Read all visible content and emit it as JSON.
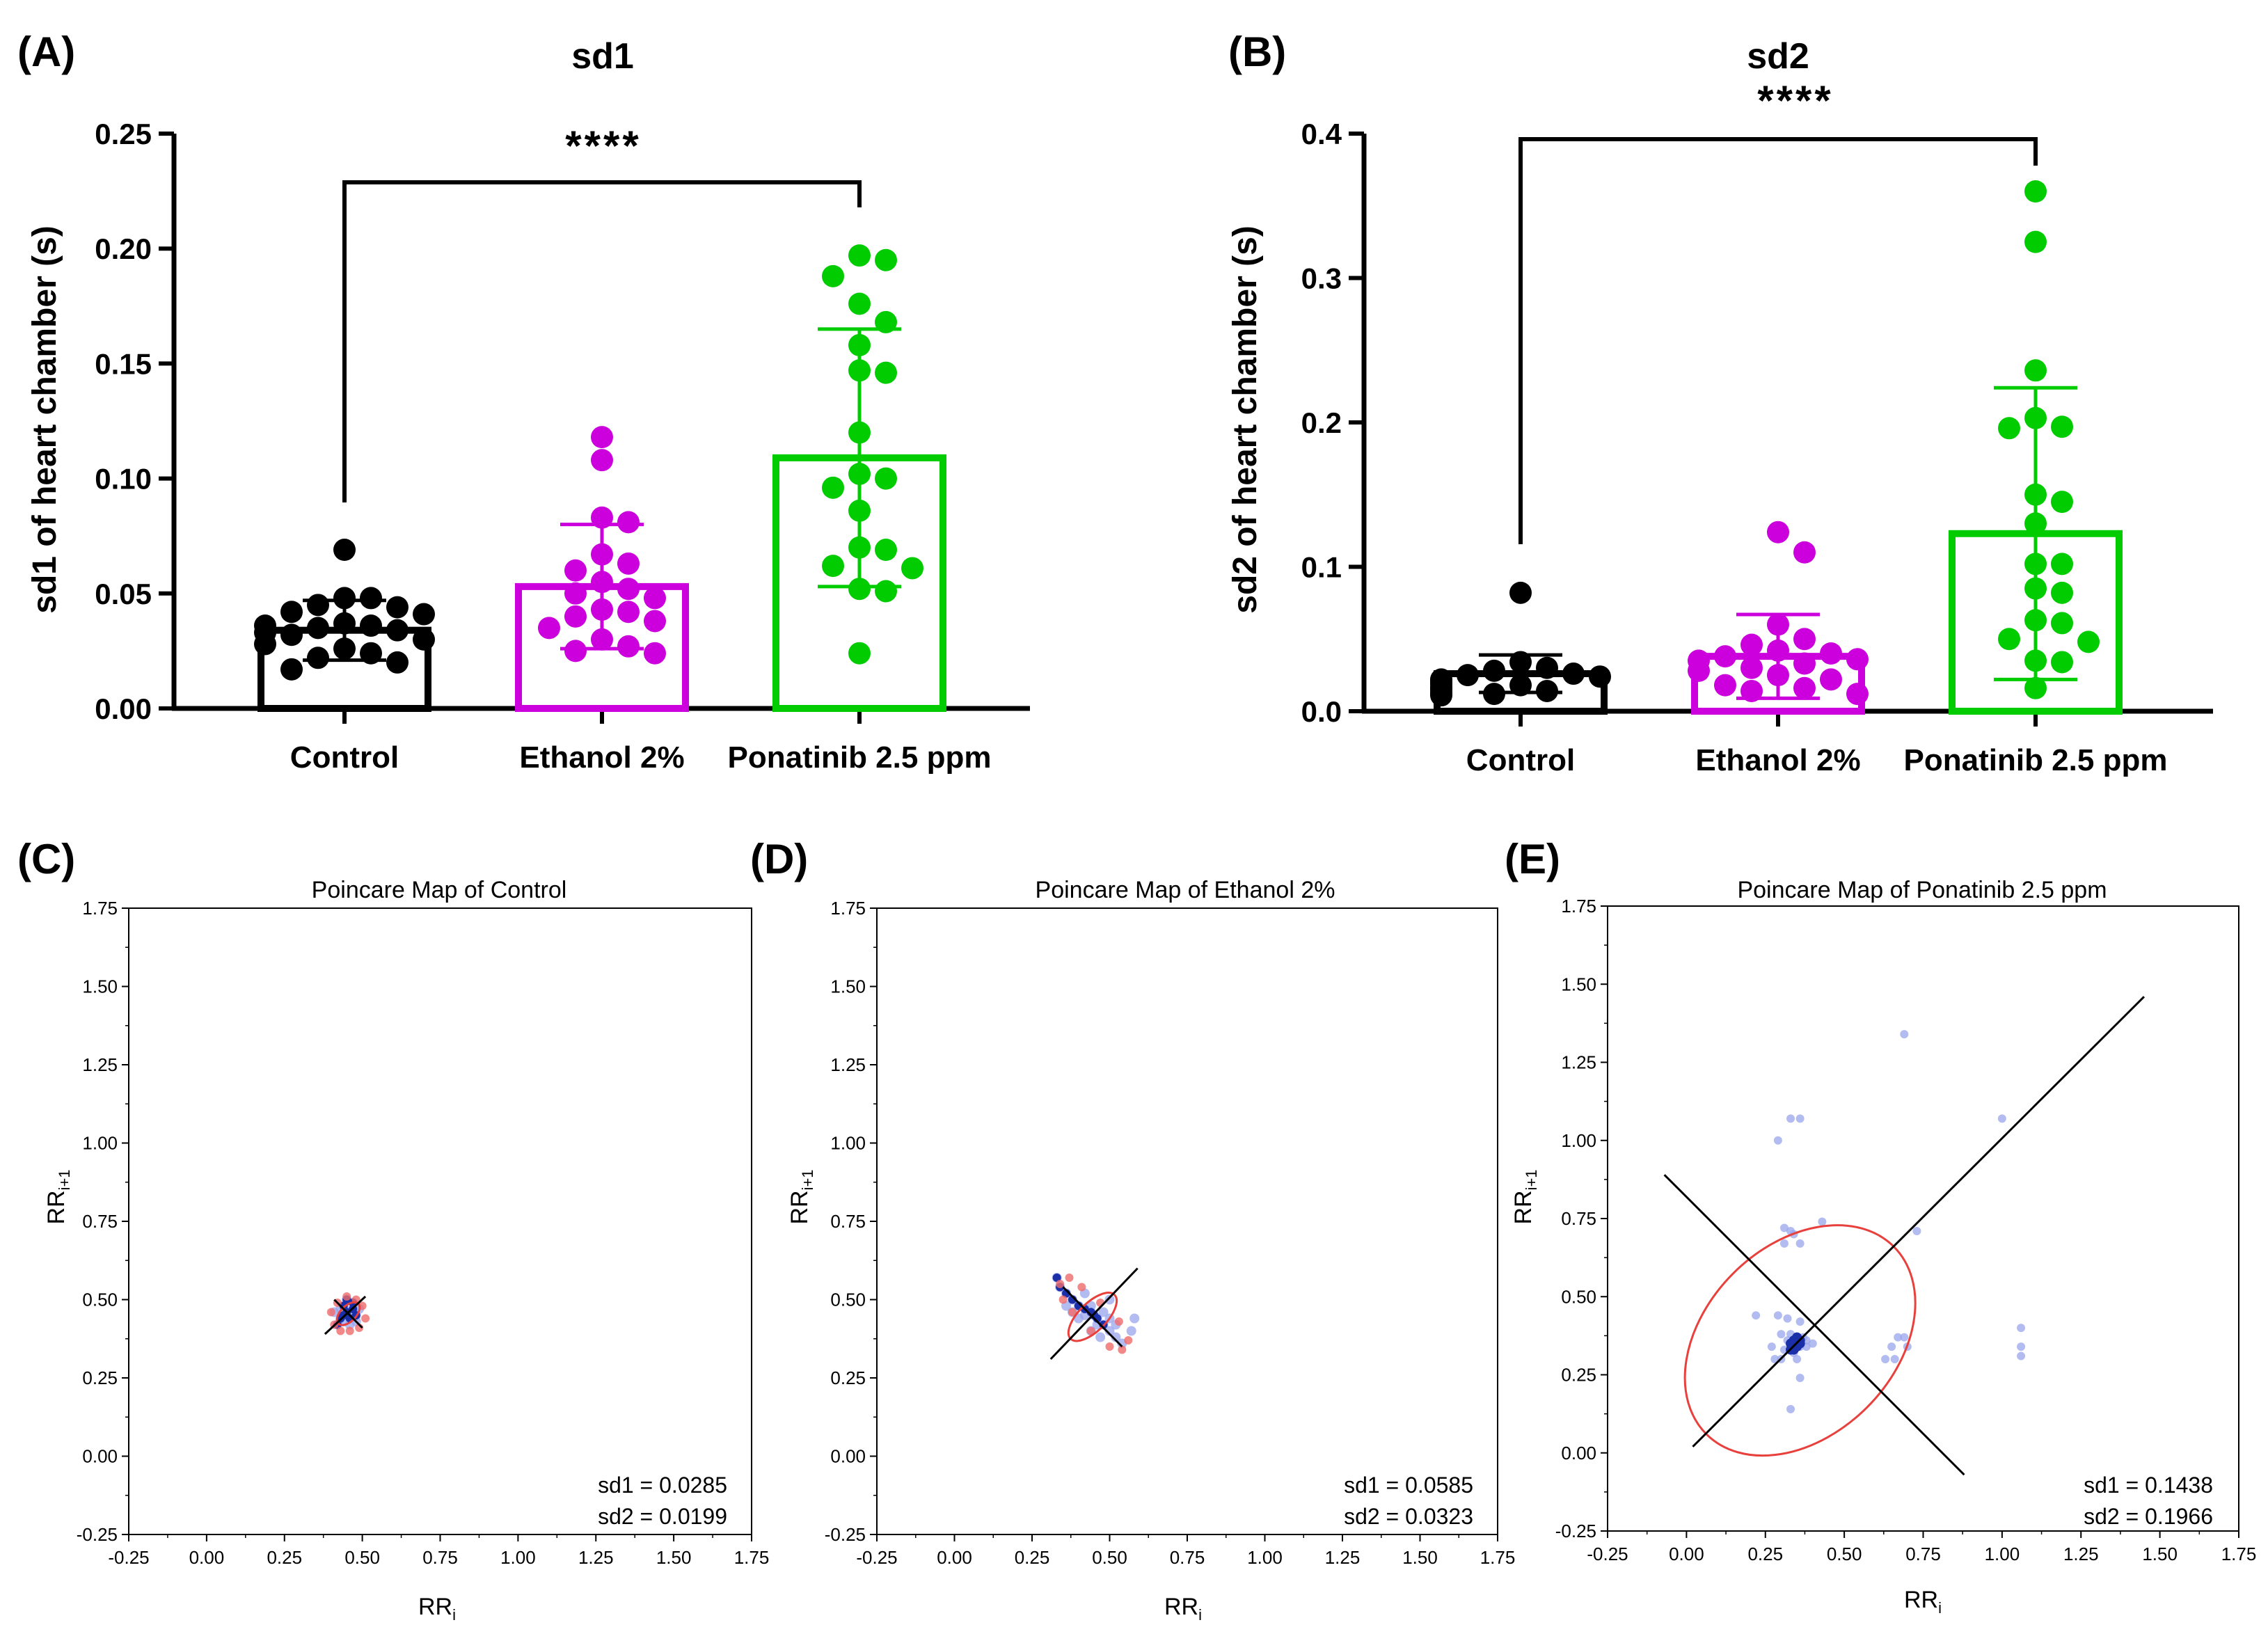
{
  "figure": {
    "panel_labels": [
      "(A)",
      "(B)",
      "(C)",
      "(D)",
      "(E)"
    ]
  },
  "chart_data": [
    {
      "type": "bar",
      "panel": "(A)",
      "title": "sd1",
      "ylabel": "sd1 of heart chamber (s)",
      "xlabel": "",
      "ylim": [
        0,
        0.25
      ],
      "yticks": [
        "0.00",
        "0.05",
        "0.10",
        "0.15",
        "0.20",
        "0.25"
      ],
      "ytick_values": [
        0,
        0.05,
        0.1,
        0.15,
        0.2,
        0.25
      ],
      "categories": [
        "Control",
        "Ethanol 2%",
        "Ponatinib 2.5 ppm"
      ],
      "colors": [
        "#000000",
        "#cc00dd",
        "#00cc00"
      ],
      "means": [
        0.034,
        0.053,
        0.109
      ],
      "sd": [
        0.013,
        0.027,
        0.056
      ],
      "points": [
        [
          0.069,
          0.048,
          0.048,
          0.045,
          0.044,
          0.042,
          0.041,
          0.037,
          0.036,
          0.036,
          0.035,
          0.034,
          0.033,
          0.032,
          0.03,
          0.028,
          0.026,
          0.024,
          0.022,
          0.02,
          0.017
        ],
        [
          0.118,
          0.108,
          0.083,
          0.081,
          0.067,
          0.063,
          0.06,
          0.055,
          0.052,
          0.05,
          0.048,
          0.043,
          0.042,
          0.04,
          0.038,
          0.035,
          0.03,
          0.027,
          0.025,
          0.024
        ],
        [
          0.197,
          0.195,
          0.188,
          0.176,
          0.168,
          0.158,
          0.147,
          0.146,
          0.12,
          0.102,
          0.1,
          0.096,
          0.086,
          0.07,
          0.069,
          0.062,
          0.061,
          0.052,
          0.051,
          0.024
        ]
      ],
      "comparison": {
        "from": "Control",
        "to": "Ponatinib 2.5 ppm",
        "label": "****"
      }
    },
    {
      "type": "bar",
      "panel": "(B)",
      "title": "sd2",
      "ylabel": "sd2 of heart chamber (s)",
      "xlabel": "",
      "ylim": [
        0,
        0.4
      ],
      "yticks": [
        "0.0",
        "0.1",
        "0.2",
        "0.3",
        "0.4"
      ],
      "ytick_values": [
        0,
        0.1,
        0.2,
        0.3,
        0.4
      ],
      "categories": [
        "Control",
        "Ethanol 2%",
        "Ponatinib 2.5 ppm"
      ],
      "colors": [
        "#000000",
        "#cc00dd",
        "#00cc00"
      ],
      "means": [
        0.026,
        0.038,
        0.123
      ],
      "sd": [
        0.013,
        0.029,
        0.101
      ],
      "points": [
        [
          0.082,
          0.034,
          0.03,
          0.028,
          0.026,
          0.025,
          0.024,
          0.022,
          0.021,
          0.02,
          0.019,
          0.018,
          0.017,
          0.016,
          0.015,
          0.014,
          0.013,
          0.012,
          0.012,
          0.011
        ],
        [
          0.124,
          0.11,
          0.06,
          0.05,
          0.046,
          0.042,
          0.04,
          0.038,
          0.036,
          0.035,
          0.033,
          0.03,
          0.028,
          0.025,
          0.022,
          0.018,
          0.016,
          0.014,
          0.012
        ],
        [
          0.36,
          0.325,
          0.236,
          0.203,
          0.197,
          0.196,
          0.15,
          0.145,
          0.13,
          0.102,
          0.102,
          0.085,
          0.082,
          0.063,
          0.061,
          0.05,
          0.048,
          0.035,
          0.034,
          0.016
        ]
      ],
      "comparison": {
        "from": "Control",
        "to": "Ponatinib 2.5 ppm",
        "label": "****"
      }
    },
    {
      "type": "scatter",
      "panel": "(C)",
      "title": "Poincare Map of Control",
      "xlabel_main": "RR",
      "xlabel_sub": "i",
      "ylabel_main": "RR",
      "ylabel_sub": "i+1",
      "xlim": [
        -0.25,
        1.75
      ],
      "ylim": [
        -0.25,
        1.75
      ],
      "ticks": [
        "-0.25",
        "0.00",
        "0.25",
        "0.50",
        "0.75",
        "1.00",
        "1.25",
        "1.50",
        "1.75"
      ],
      "tick_values": [
        -0.25,
        0,
        0.25,
        0.5,
        0.75,
        1.0,
        1.25,
        1.5,
        1.75
      ],
      "center": [
        0.455,
        0.455
      ],
      "sd1_value": 0.0285,
      "sd2_value": 0.0199,
      "sd1_label": "sd1 = 0.0285",
      "sd2_label": "sd2 = 0.0199",
      "major_line": [
        [
          0.38,
          0.39
        ],
        [
          0.51,
          0.51
        ]
      ],
      "minor_line": [
        [
          0.41,
          0.5
        ],
        [
          0.5,
          0.41
        ]
      ],
      "ellipse": {
        "rx": 0.045,
        "ry": 0.025
      },
      "points": [
        [
          0.42,
          0.42
        ],
        [
          0.43,
          0.44
        ],
        [
          0.44,
          0.45
        ],
        [
          0.45,
          0.46
        ],
        [
          0.46,
          0.44
        ],
        [
          0.47,
          0.47
        ],
        [
          0.48,
          0.45
        ],
        [
          0.44,
          0.48
        ],
        [
          0.45,
          0.5
        ],
        [
          0.47,
          0.49
        ],
        [
          0.43,
          0.47
        ],
        [
          0.48,
          0.43
        ],
        [
          0.41,
          0.46
        ],
        [
          0.49,
          0.47
        ],
        [
          0.46,
          0.42
        ],
        [
          0.44,
          0.43
        ]
      ],
      "ellipse_points": [
        [
          0.41,
          0.42
        ],
        [
          0.4,
          0.46
        ],
        [
          0.42,
          0.49
        ],
        [
          0.45,
          0.51
        ],
        [
          0.48,
          0.5
        ],
        [
          0.5,
          0.48
        ],
        [
          0.51,
          0.44
        ],
        [
          0.49,
          0.41
        ],
        [
          0.46,
          0.4
        ],
        [
          0.43,
          0.4
        ]
      ]
    },
    {
      "type": "scatter",
      "panel": "(D)",
      "title": "Poincare Map of Ethanol 2%",
      "xlabel_main": "RR",
      "xlabel_sub": "i",
      "ylabel_main": "RR",
      "ylabel_sub": "i+1",
      "xlim": [
        -0.25,
        1.75
      ],
      "ylim": [
        -0.25,
        1.75
      ],
      "ticks": [
        "-0.25",
        "0.00",
        "0.25",
        "0.50",
        "0.75",
        "1.00",
        "1.25",
        "1.50",
        "1.75"
      ],
      "tick_values": [
        -0.25,
        0,
        0.25,
        0.5,
        0.75,
        1.0,
        1.25,
        1.5,
        1.75
      ],
      "center": [
        0.445,
        0.445
      ],
      "sd1_value": 0.0585,
      "sd2_value": 0.0323,
      "sd1_label": "sd1 = 0.0585",
      "sd2_label": "sd2 = 0.0323",
      "major_line": [
        [
          0.31,
          0.31
        ],
        [
          0.59,
          0.6
        ]
      ],
      "minor_line": [
        [
          0.35,
          0.54
        ],
        [
          0.54,
          0.35
        ]
      ],
      "ellipse": {
        "rx": 0.1,
        "ry": 0.045
      },
      "points": [
        [
          0.33,
          0.57
        ],
        [
          0.34,
          0.54
        ],
        [
          0.36,
          0.52
        ],
        [
          0.38,
          0.5
        ],
        [
          0.4,
          0.48
        ],
        [
          0.42,
          0.47
        ],
        [
          0.44,
          0.46
        ],
        [
          0.45,
          0.45
        ],
        [
          0.46,
          0.44
        ],
        [
          0.48,
          0.42
        ],
        [
          0.5,
          0.4
        ],
        [
          0.52,
          0.38
        ],
        [
          0.54,
          0.36
        ],
        [
          0.42,
          0.45
        ],
        [
          0.44,
          0.48
        ],
        [
          0.46,
          0.42
        ],
        [
          0.48,
          0.46
        ],
        [
          0.4,
          0.44
        ],
        [
          0.5,
          0.44
        ],
        [
          0.44,
          0.4
        ],
        [
          0.38,
          0.46
        ],
        [
          0.52,
          0.42
        ],
        [
          0.47,
          0.38
        ],
        [
          0.36,
          0.48
        ],
        [
          0.57,
          0.4
        ],
        [
          0.58,
          0.44
        ],
        [
          0.42,
          0.52
        ],
        [
          0.5,
          0.5
        ]
      ],
      "ellipse_points": [
        [
          0.34,
          0.55
        ],
        [
          0.37,
          0.57
        ],
        [
          0.41,
          0.54
        ],
        [
          0.47,
          0.49
        ],
        [
          0.53,
          0.43
        ],
        [
          0.56,
          0.37
        ],
        [
          0.54,
          0.34
        ],
        [
          0.5,
          0.35
        ],
        [
          0.44,
          0.4
        ],
        [
          0.38,
          0.46
        ],
        [
          0.35,
          0.5
        ]
      ]
    },
    {
      "type": "scatter",
      "panel": "(E)",
      "title": "Poincare Map of Ponatinib 2.5 ppm",
      "xlabel_main": "RR",
      "xlabel_sub": "i",
      "ylabel_main": "RR",
      "ylabel_sub": "i+1",
      "xlim": [
        -0.25,
        1.75
      ],
      "ylim": [
        -0.25,
        1.75
      ],
      "ticks": [
        "-0.25",
        "0.00",
        "0.25",
        "0.50",
        "0.75",
        "1.00",
        "1.25",
        "1.50",
        "1.75"
      ],
      "tick_values": [
        -0.25,
        0,
        0.25,
        0.5,
        0.75,
        1.0,
        1.25,
        1.5,
        1.75
      ],
      "center": [
        0.36,
        0.36
      ],
      "sd1_value": 0.1438,
      "sd2_value": 0.1966,
      "sd1_label": "sd1 = 0.1438",
      "sd2_label": "sd2 = 0.1966",
      "major_line": [
        [
          0.02,
          0.02
        ],
        [
          1.45,
          1.46
        ]
      ],
      "minor_line": [
        [
          -0.07,
          0.89
        ],
        [
          0.88,
          -0.07
        ]
      ],
      "ellipse": {
        "rx": 0.42,
        "ry": 0.3
      },
      "points": [
        [
          0.33,
          0.34
        ],
        [
          0.34,
          0.35
        ],
        [
          0.35,
          0.36
        ],
        [
          0.36,
          0.34
        ],
        [
          0.32,
          0.36
        ],
        [
          0.34,
          0.32
        ],
        [
          0.37,
          0.37
        ],
        [
          0.31,
          0.33
        ],
        [
          0.38,
          0.34
        ],
        [
          0.33,
          0.38
        ],
        [
          0.35,
          0.3
        ],
        [
          0.3,
          0.3
        ],
        [
          0.36,
          0.24
        ],
        [
          0.33,
          0.14
        ],
        [
          0.27,
          0.34
        ],
        [
          0.28,
          0.3
        ],
        [
          0.4,
          0.35
        ],
        [
          0.29,
          0.44
        ],
        [
          0.32,
          0.43
        ],
        [
          0.36,
          0.42
        ],
        [
          0.22,
          0.44
        ],
        [
          0.33,
          0.71
        ],
        [
          0.34,
          0.7
        ],
        [
          0.31,
          0.67
        ],
        [
          0.36,
          0.67
        ],
        [
          0.31,
          0.72
        ],
        [
          0.43,
          0.74
        ],
        [
          0.33,
          1.07
        ],
        [
          0.36,
          1.07
        ],
        [
          0.29,
          1.0
        ],
        [
          0.69,
          1.34
        ],
        [
          0.65,
          0.34
        ],
        [
          0.67,
          0.37
        ],
        [
          0.7,
          0.34
        ],
        [
          0.69,
          0.37
        ],
        [
          0.63,
          0.3
        ],
        [
          0.66,
          0.3
        ],
        [
          0.73,
          0.71
        ],
        [
          1.0,
          1.07
        ],
        [
          1.06,
          0.4
        ],
        [
          1.06,
          0.34
        ],
        [
          1.06,
          0.31
        ],
        [
          0.38,
          0.36
        ],
        [
          0.3,
          0.38
        ]
      ],
      "dark_points": [
        [
          0.33,
          0.35
        ],
        [
          0.34,
          0.36
        ],
        [
          0.35,
          0.34
        ],
        [
          0.36,
          0.36
        ],
        [
          0.33,
          0.33
        ],
        [
          0.35,
          0.37
        ],
        [
          0.34,
          0.33
        ],
        [
          0.36,
          0.35
        ]
      ]
    }
  ]
}
